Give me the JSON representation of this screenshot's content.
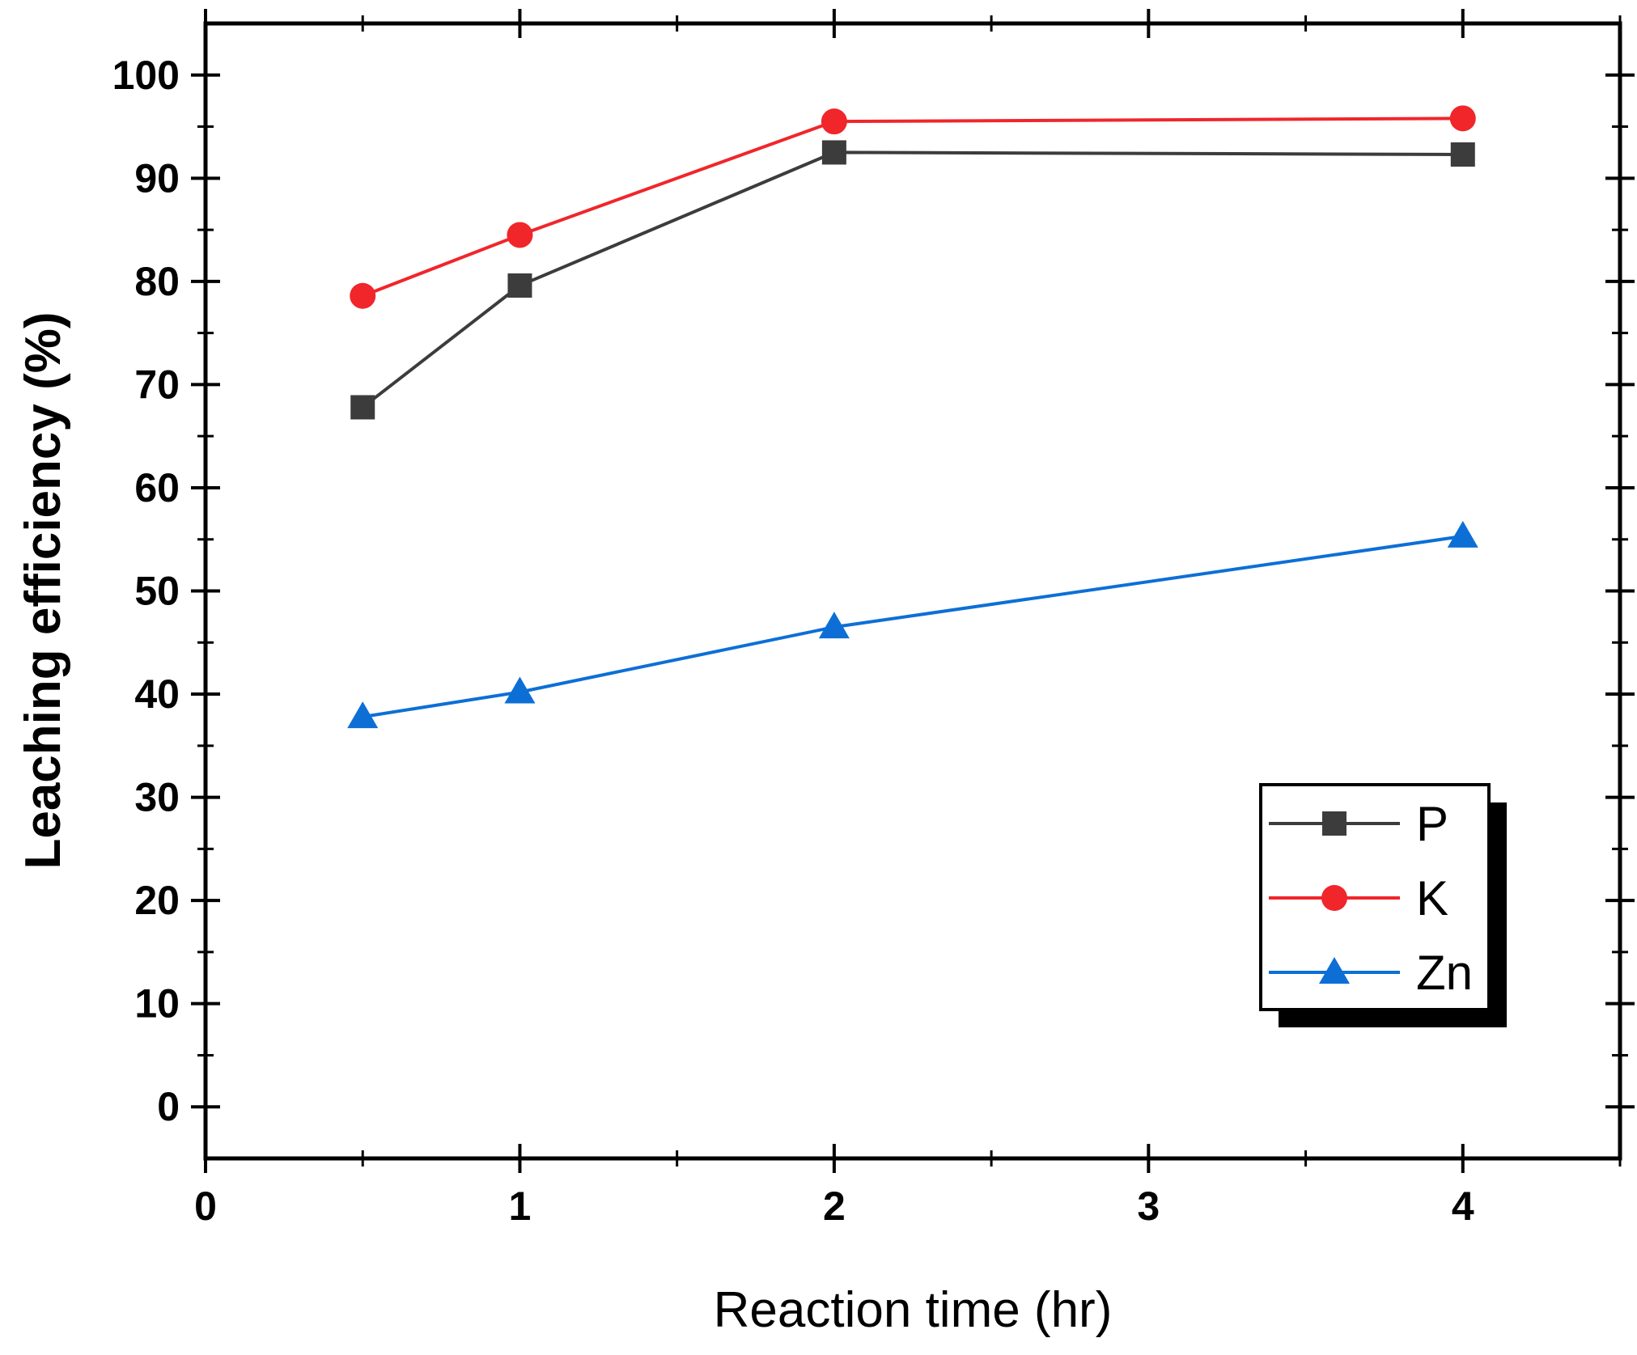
{
  "chart_data": {
    "type": "line",
    "title": "",
    "xlabel": "Reaction time (hr)",
    "ylabel": "Leaching efficiency (%)",
    "xlim": [
      0,
      4.5
    ],
    "ylim": [
      -5,
      105
    ],
    "xticks": [
      0,
      1,
      2,
      3,
      4
    ],
    "yticks": [
      0,
      10,
      20,
      30,
      40,
      50,
      60,
      70,
      80,
      90,
      100
    ],
    "x": [
      0.5,
      1,
      2,
      4
    ],
    "series": [
      {
        "name": "P",
        "values": [
          67.8,
          79.6,
          92.5,
          92.3
        ],
        "color": "#3c3c3c",
        "marker": "square"
      },
      {
        "name": "K",
        "values": [
          78.6,
          84.5,
          95.5,
          95.8
        ],
        "color": "#f0262b",
        "marker": "circle"
      },
      {
        "name": "Zn",
        "values": [
          37.8,
          40.2,
          46.5,
          55.3
        ],
        "color": "#0d6fd6",
        "marker": "triangle"
      }
    ],
    "legend": {
      "position": "bottom-right"
    }
  }
}
